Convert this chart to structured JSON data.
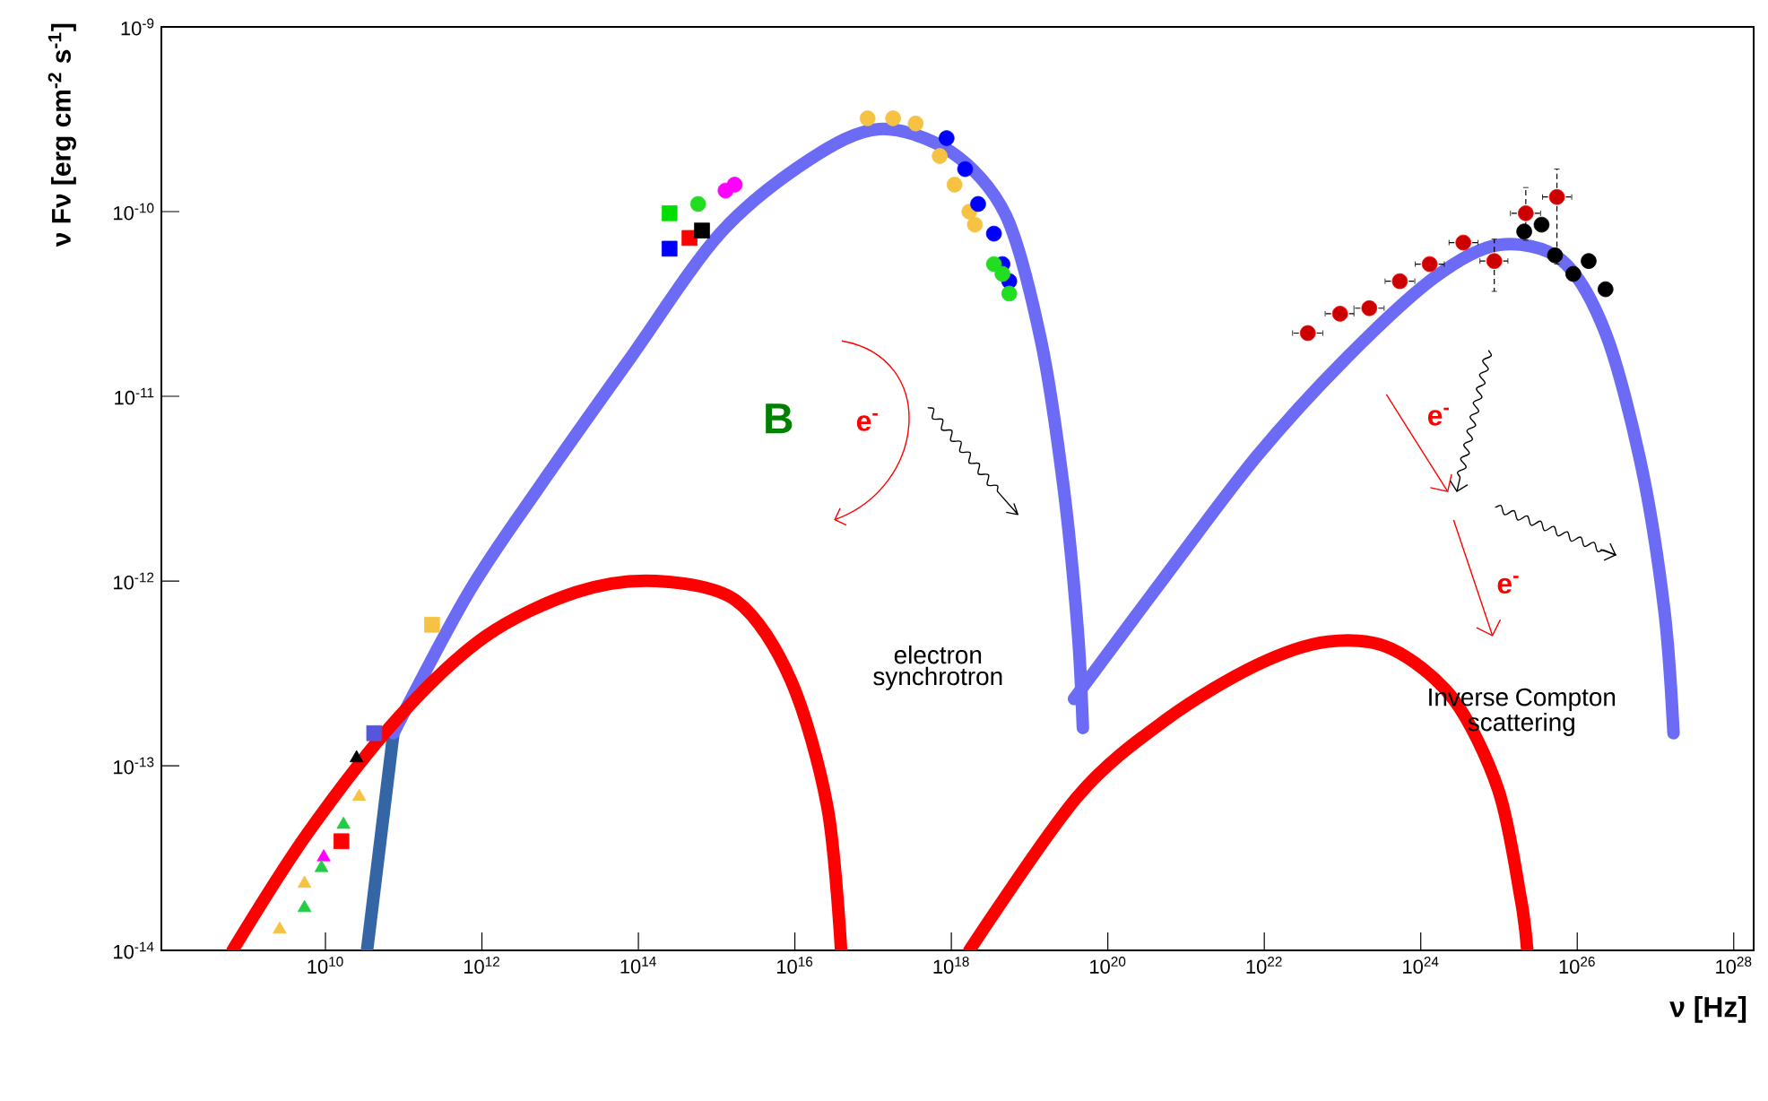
{
  "chart_data": {
    "type": "scatter",
    "xlabel": "ν [Hz]",
    "ylabel": "ν Fν [erg cm$^{-2}$ s$^{-1}$]",
    "log": "xy",
    "xlim": [
      80000000.0,
      1.8e+28
    ],
    "ylim": [
      1e-14,
      1e-09
    ],
    "xticks": [
      {
        "value": 10000000000.0,
        "label": "10$^{10}$"
      },
      {
        "value": 1000000000000.0,
        "label": "10$^{12}$"
      },
      {
        "value": 100000000000000.0,
        "label": "10$^{14}$"
      },
      {
        "value": 1e+16,
        "label": "10$^{16}$"
      },
      {
        "value": 1e+18,
        "label": "10$^{18}$"
      },
      {
        "value": 1e+20,
        "label": "10$^{20}$"
      },
      {
        "value": 1e+22,
        "label": "10$^{22}$"
      },
      {
        "value": 1e+24,
        "label": "10$^{24}$"
      },
      {
        "value": 1e+26,
        "label": "10$^{26}$"
      },
      {
        "value": 1e+28,
        "label": "10$^{28}$"
      }
    ],
    "yticks": [
      {
        "value": 1e-14,
        "label": "10$^{-14}$"
      },
      {
        "value": 1e-13,
        "label": "10$^{-13}$"
      },
      {
        "value": 1e-12,
        "label": "10$^{-12}$"
      },
      {
        "value": 1e-11,
        "label": "10$^{-11}$"
      },
      {
        "value": 1e-10,
        "label": "10$^{-10}$"
      },
      {
        "value": 1e-09,
        "label": "10$^{-9}$"
      }
    ],
    "annotations": [
      "B",
      "e$^{-}$",
      "electron synchrotron",
      "e$^{-}$",
      "e$^{-}$",
      "Inverse Compton scattering"
    ],
    "series": [
      {
        "type": "line",
        "color": "#3465a4",
        "x": [
          34000000000.0,
          74000000000.0
        ],
        "values": [
          1e-14,
          1.5e-13
        ]
      },
      {
        "type": "line",
        "color": "#6b6bf5",
        "x": [
          74000000000.0,
          680000000000.0,
          5600000000000.0,
          78000000000000.0,
          1100000000000000.0,
          1.5e+16,
          1.2e+17,
          1e+18,
          5e+18,
          1.4e+19,
          2.7e+19,
          4.1e+19,
          4.8e+19
        ],
        "values": [
          1.5e-13,
          8.7e-13,
          3.3e-12,
          1.6e-11,
          7.6e-11,
          1.9e-10,
          2.8e-10,
          2.1e-10,
          9.5e-11,
          2e-11,
          3.3e-12,
          5.6e-13,
          1.6e-13
        ]
      },
      {
        "type": "line",
        "color": "#6b6bf5",
        "x": [
          3.7e+19,
          5.8e+20,
          7.9e+21,
          1.1e+23,
          1.5e+24,
          9.8e+24,
          6.2e+25,
          2.3e+26,
          6.6e+26,
          1.3e+27,
          1.7e+27
        ],
        "values": [
          2.3e-13,
          1.1e-12,
          4.7e-12,
          1.6e-11,
          4.4e-11,
          6.6e-11,
          5.5e-11,
          2.2e-11,
          4.2e-12,
          6.9e-13,
          1.5e-13
        ]
      },
      {
        "type": "line",
        "color": "#ff0000",
        "x": [
          650000000.0,
          5900000000.0,
          83000000000.0,
          1100000000000.0,
          16000000000000.0,
          170000000000000.0,
          1800000000000000.0,
          8900000000000000.0,
          2.6e+16,
          3.9e+16
        ],
        "values": [
          1e-14,
          4.3e-14,
          1.8e-13,
          5e-13,
          8.7e-13,
          1e-12,
          7.8e-13,
          2.9e-13,
          6e-14,
          1e-14
        ]
      },
      {
        "type": "line",
        "color": "#ff0000",
        "x": [
          1.7e+18,
          4.1e+19,
          5.8e+20,
          7.9e+21,
          6.5e+22,
          4.2e+23,
          2.6e+24,
          9.8e+24,
          1.9e+25,
          2.3e+25
        ],
        "values": [
          1e-14,
          6.8e-14,
          1.8e-13,
          3.5e-13,
          4.7e-13,
          4.3e-13,
          2.3e-13,
          7.4e-14,
          1.9e-14,
          1e-14
        ]
      },
      {
        "type": "scatter",
        "marker": "circle",
        "color": "#f5c242",
        "x": [
          8.5e+16,
          1.8e+17,
          3.5e+17,
          7.1e+17,
          1.1e+18,
          1.7e+18,
          2e+18
        ],
        "values": [
          3.2e-10,
          3.2e-10,
          3e-10,
          2e-10,
          1.4e-10,
          1e-10,
          8.5e-11
        ]
      },
      {
        "type": "scatter",
        "marker": "circle",
        "color": "#0000ff",
        "x": [
          8.7e+17,
          1.5e+18,
          2.2e+18,
          3.5e+18,
          4.5e+18,
          5.5e+18
        ],
        "values": [
          2.5e-10,
          1.7e-10,
          1.1e-10,
          7.6e-11,
          5.2e-11,
          4.2e-11
        ]
      },
      {
        "type": "scatter",
        "marker": "circle",
        "color": "#22dd22",
        "x": [
          580000000000000.0,
          3.5e+18,
          4.5e+18,
          5.5e+18
        ],
        "values": [
          1.1e-10,
          5.2e-11,
          4.6e-11,
          3.6e-11
        ]
      },
      {
        "type": "scatter",
        "marker": "circle",
        "color": "#ff00ff",
        "x": [
          1300000000000000.0,
          1700000000000000.0
        ],
        "values": [
          1.3e-10,
          1.4e-10
        ]
      },
      {
        "type": "scatter",
        "marker": "square",
        "colors": [
          "#00dd00",
          "#0000ff",
          "#ff0000",
          "#000000",
          "#f5c242",
          "#5555dd",
          "#ff0000"
        ],
        "x": [
          250000000000000.0,
          250000000000000.0,
          450000000000000.0,
          650000000000000.0,
          230000000000.0,
          42000000000.0,
          16000000000.0
        ],
        "values": [
          9.8e-11,
          6.3e-11,
          7.2e-11,
          7.9e-11,
          5.8e-13,
          1.5e-13,
          3.9e-14
        ]
      },
      {
        "type": "scatter",
        "marker": "triangle",
        "colors": [
          "#000000",
          "#f5c242",
          "#22cc44",
          "#f5c242",
          "#ff00ff",
          "#22cc44",
          "#f5c242",
          "#22cc44"
        ],
        "x": [
          25000000000.0,
          2600000000.0,
          5400000000.0,
          5400000000.0,
          9500000000.0,
          17000000000.0,
          27000000000.0,
          8900000000.0
        ],
        "values": [
          1.1e-13,
          1.3e-14,
          1.7e-14,
          2.3e-14,
          3.2e-14,
          4.8e-14,
          6.8e-14,
          2.8e-14
        ]
      },
      {
        "type": "scatter",
        "marker": "circle",
        "color": "#000000",
        "x": [
          2.1e+25,
          3.5e+25,
          5.2e+25,
          8.9e+25,
          1.4e+26,
          2.3e+26
        ],
        "values": [
          7.8e-11,
          8.5e-11,
          5.8e-11,
          4.6e-11,
          5.4e-11,
          3.8e-11
        ]
      },
      {
        "type": "scatter",
        "marker": "circle",
        "color": "#ff0000",
        "x": [
          3.6e+22,
          9.3e+22,
          2.2e+23,
          5.4e+23,
          1.3e+24,
          3.5e+24,
          8.7e+24,
          2.2e+25,
          5.5e+25
        ],
        "values": [
          2.2e-11,
          2.8e-11,
          3e-11,
          4.2e-11,
          5.2e-11,
          6.8e-11,
          5.4e-11,
          9.8e-11,
          1.2e-10
        ],
        "errors": [
          null,
          null,
          null,
          null,
          null,
          null,
          [
            3.7e-11,
            7.1e-11
          ],
          [
            7e-11,
            1.35e-10
          ],
          [
            5.2e-11,
            1.7e-10
          ]
        ],
        "xerrors": [
          [
            2.3e+22,
            5.6e+22
          ],
          [
            6e+22,
            1.4e+23
          ],
          [
            1.4e+23,
            3.4e+23
          ],
          [
            3.5e+23,
            8.4e+23
          ],
          [
            8.5e+23,
            2e+24
          ],
          [
            2.3e+24,
            5.4e+24
          ],
          [
            5.7e+24,
            1.3e+25
          ],
          [
            1.4e+25,
            3.4e+25
          ],
          [
            3.6e+25,
            8.5e+25
          ]
        ]
      }
    ]
  }
}
